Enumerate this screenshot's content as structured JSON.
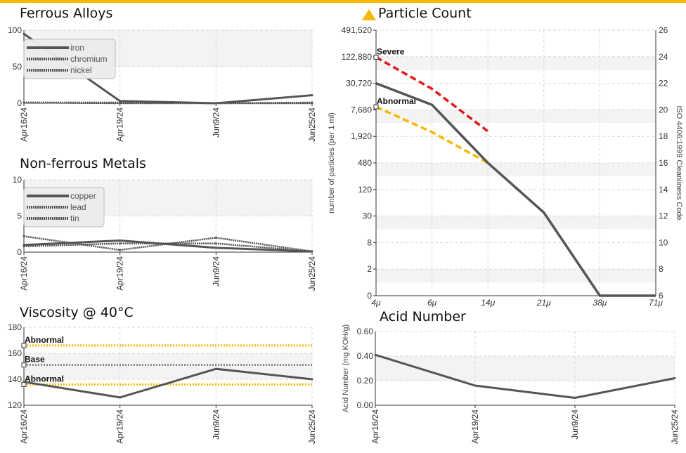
{
  "colors": {
    "accent": "#f5b800",
    "series": "#555555",
    "severe": "#e0191a",
    "abnormal": "#f5b800",
    "alert_icon": "#f5b800"
  },
  "icons": {
    "particle_warning": "warning-triangle-icon"
  },
  "chart_data": [
    {
      "id": "ferrous",
      "type": "line",
      "title": "Ferrous Alloys",
      "categories": [
        "Apr16/24",
        "Apr19/24",
        "Jun9/24",
        "Jun25/24"
      ],
      "ylim": [
        0,
        100
      ],
      "yticks": [
        "100",
        "50",
        "0"
      ],
      "grid": true,
      "legend_position": "top-left",
      "series": [
        {
          "name": "iron",
          "style": "solid",
          "values": [
            95,
            3,
            0,
            11
          ]
        },
        {
          "name": "chromium",
          "style": "dotted",
          "values": [
            1,
            0,
            0,
            0
          ]
        },
        {
          "name": "nickel",
          "style": "dotted",
          "values": [
            1,
            1,
            0,
            1
          ]
        }
      ]
    },
    {
      "id": "nonferrous",
      "type": "line",
      "title": "Non-ferrous Metals",
      "categories": [
        "Apr16/24",
        "Apr19/24",
        "Jun9/24",
        "Jun25/24"
      ],
      "ylim": [
        0,
        10
      ],
      "yticks": [
        "10",
        "5",
        "0"
      ],
      "grid": true,
      "legend_position": "top-left",
      "series": [
        {
          "name": "copper",
          "style": "solid",
          "values": [
            1.0,
            1.6,
            0.6,
            0.1
          ]
        },
        {
          "name": "lead",
          "style": "dotted",
          "values": [
            2.2,
            0.3,
            2.0,
            0.1
          ]
        },
        {
          "name": "tin",
          "style": "dotted",
          "values": [
            0.8,
            1.2,
            1.2,
            0.1
          ]
        }
      ]
    },
    {
      "id": "viscosity",
      "type": "line",
      "title": "Viscosity @ 40°C",
      "categories": [
        "Apr16/24",
        "Apr19/24",
        "Jun9/24",
        "Jun25/24"
      ],
      "ylim": [
        120,
        180
      ],
      "yticks": [
        "180",
        "160",
        "140",
        "120"
      ],
      "grid": true,
      "series": [
        {
          "style": "solid",
          "values": [
            138,
            126,
            148,
            140
          ]
        }
      ],
      "reference_lines": [
        {
          "label": "Abnormal",
          "value": 166,
          "style": "dotted-yellow"
        },
        {
          "label": "Base",
          "value": 151,
          "style": "dotted-gray"
        },
        {
          "label": "Abnormal",
          "value": 136,
          "style": "dotted-yellow"
        }
      ]
    },
    {
      "id": "particle",
      "type": "line",
      "title": "Particle Count",
      "scale": "log",
      "categories": [
        "4μ",
        "6μ",
        "14μ",
        "21μ",
        "38μ",
        "71μ"
      ],
      "yticks": [
        "491,520",
        "122,880",
        "30,720",
        "7,680",
        "1,920",
        "480",
        "120",
        "30",
        "8",
        "2",
        "0"
      ],
      "ylabel": "number of particles (per 1 ml)",
      "y2label": "ISO 4406:1999 Cleanliness Code",
      "y2ticks": [
        "26",
        "24",
        "22",
        "20",
        "18",
        "16",
        "14",
        "12",
        "10",
        "8",
        "6"
      ],
      "grid": true,
      "series": [
        {
          "style": "solid",
          "values": [
            30720,
            10000,
            480,
            36,
            0,
            0
          ]
        }
      ],
      "limits": [
        {
          "label": "Severe",
          "color": "severe",
          "values": [
            120000,
            23000,
            2500
          ]
        },
        {
          "label": "Abnormal",
          "color": "abnormal",
          "values": [
            9000,
            2400,
            480
          ]
        }
      ]
    },
    {
      "id": "acid",
      "type": "line",
      "title": "Acid Number",
      "categories": [
        "Apr16/24",
        "Apr19/24",
        "Jun9/24",
        "Jun25/24"
      ],
      "ylim": [
        0,
        0.6
      ],
      "yticks": [
        "0.60",
        "0.40",
        "0.20",
        "0.00"
      ],
      "ylabel": "Acid Number (mg KOH/g)",
      "grid": true,
      "series": [
        {
          "style": "solid",
          "values": [
            0.41,
            0.16,
            0.06,
            0.22
          ]
        }
      ]
    }
  ]
}
